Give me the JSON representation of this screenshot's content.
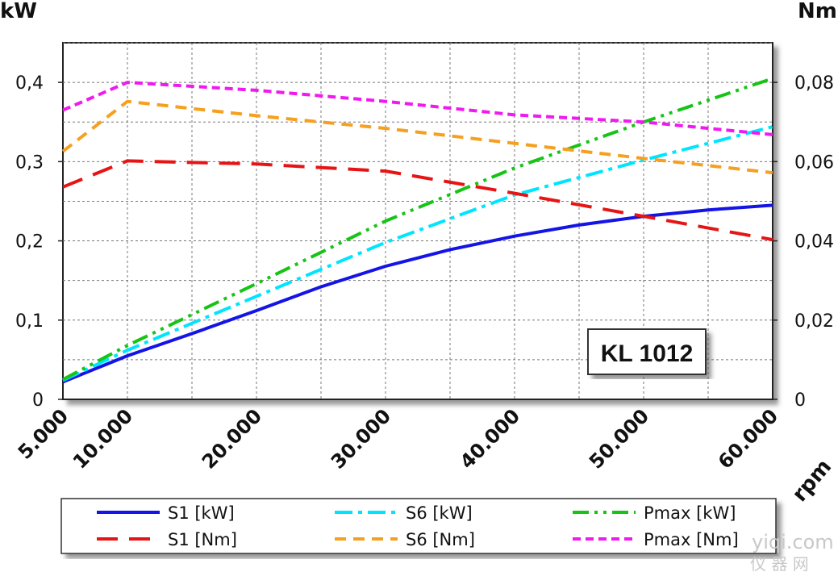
{
  "chart_data": {
    "type": "line",
    "xlabel": "rpm",
    "ylabel_left": "kW",
    "ylabel_right": "Nm",
    "x_ticks": [
      "5.000",
      "10.000",
      "20.000",
      "30.000",
      "40.000",
      "50.000",
      "60.000"
    ],
    "x_tick_values": [
      5000,
      10000,
      20000,
      30000,
      40000,
      50000,
      60000
    ],
    "xlim": [
      5000,
      60000
    ],
    "ylim_left": [
      0,
      0.45
    ],
    "ylim_right": [
      0,
      0.09
    ],
    "y_left_ticks": [
      "0",
      "0,1",
      "0,2",
      "0,3",
      "0,4"
    ],
    "y_left_tick_values": [
      0,
      0.1,
      0.2,
      0.3,
      0.4
    ],
    "y_right_ticks": [
      "0",
      "0,02",
      "0,04",
      "0,06",
      "0,08"
    ],
    "y_right_tick_values": [
      0,
      0.02,
      0.04,
      0.06,
      0.08
    ],
    "grid": true,
    "annotation": "KL 1012",
    "series": [
      {
        "name": "S1 [kW]",
        "axis": "left",
        "color": "#1414e6",
        "dash": "solid",
        "x": [
          5000,
          10000,
          15000,
          20000,
          25000,
          30000,
          35000,
          40000,
          45000,
          50000,
          55000,
          60000
        ],
        "y": [
          0.022,
          0.055,
          0.083,
          0.112,
          0.142,
          0.168,
          0.189,
          0.206,
          0.22,
          0.231,
          0.239,
          0.245
        ]
      },
      {
        "name": "S6 [kW]",
        "axis": "left",
        "color": "#00e5ff",
        "dash": "dashdot",
        "x": [
          5000,
          10000,
          20000,
          30000,
          40000,
          50000,
          60000
        ],
        "y": [
          0.024,
          0.062,
          0.13,
          0.198,
          0.258,
          0.302,
          0.344
        ]
      },
      {
        "name": "Pmax [kW]",
        "axis": "left",
        "color": "#16c416",
        "dash": "dashdotdot",
        "x": [
          5000,
          10000,
          20000,
          30000,
          40000,
          50000,
          60000
        ],
        "y": [
          0.025,
          0.068,
          0.146,
          0.225,
          0.292,
          0.35,
          0.405
        ]
      },
      {
        "name": "S1 [Nm]",
        "axis": "right",
        "color": "#e61414",
        "dash": "longdash",
        "x": [
          5000,
          10000,
          20000,
          30000,
          40000,
          50000,
          60000
        ],
        "y": [
          0.0536,
          0.0602,
          0.0594,
          0.0576,
          0.052,
          0.0462,
          0.0403
        ]
      },
      {
        "name": "S6 [Nm]",
        "axis": "right",
        "color": "#f5a020",
        "dash": "dashed",
        "x": [
          5000,
          10000,
          20000,
          30000,
          40000,
          50000,
          60000
        ],
        "y": [
          0.0626,
          0.0752,
          0.0716,
          0.0684,
          0.0646,
          0.0608,
          0.0572
        ]
      },
      {
        "name": "Pmax [Nm]",
        "axis": "right",
        "color": "#f01af0",
        "dash": "shortdash",
        "x": [
          5000,
          10000,
          20000,
          30000,
          40000,
          50000,
          60000
        ],
        "y": [
          0.073,
          0.08,
          0.078,
          0.0752,
          0.0718,
          0.07,
          0.0668
        ]
      }
    ]
  },
  "legend_rows": [
    [
      "S1 [kW]",
      "S6 [kW]",
      "Pmax [kW]"
    ],
    [
      "S1 [Nm]",
      "S6 [Nm]",
      "Pmax [Nm]"
    ]
  ],
  "watermark": {
    "line1": "yiqi.com",
    "line2": "仪 器 网"
  }
}
